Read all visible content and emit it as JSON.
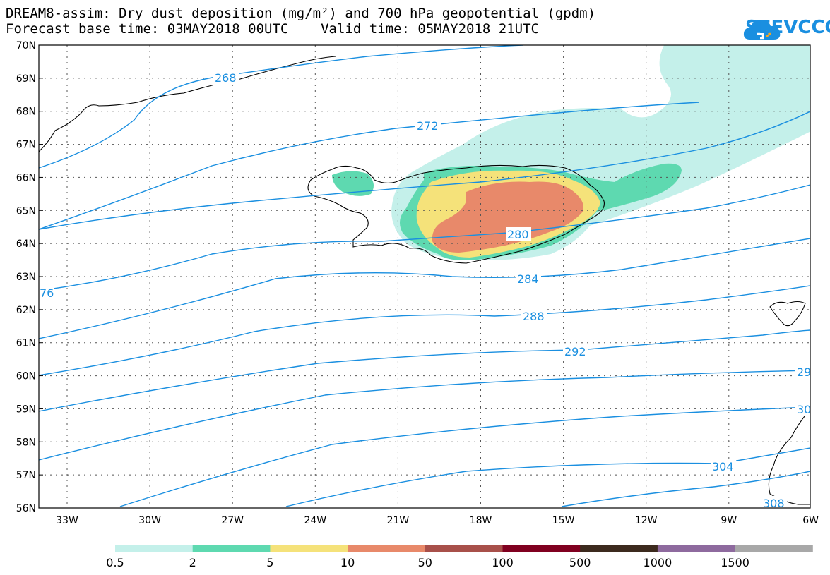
{
  "title_line1": "DREAM8-assim: Dry dust deposition (mg/m²) and 700 hPa geopotential (gpdm)",
  "title_line2": "Forecast base time: 03MAY2018 00UTC    Valid time: 05MAY2018 21UTC",
  "logo_text": "SEEVCCC",
  "map": {
    "lat_labels": [
      "70N",
      "69N",
      "68N",
      "67N",
      "66N",
      "65N",
      "64N",
      "63N",
      "62N",
      "61N",
      "60N",
      "59N",
      "58N",
      "57N",
      "56N"
    ],
    "lon_labels": [
      "33W",
      "30W",
      "27W",
      "24W",
      "21W",
      "18W",
      "15W",
      "12W",
      "9W",
      "6W"
    ],
    "contour_color": "#1a8fe0",
    "contours": [
      {
        "label": "268"
      },
      {
        "label": "272"
      },
      {
        "label": "280"
      },
      {
        "label": "284"
      },
      {
        "label": "288"
      },
      {
        "label": "292"
      },
      {
        "label": "304"
      },
      {
        "label": "308"
      },
      {
        "label": "76"
      },
      {
        "label": "29"
      },
      {
        "label": "30"
      }
    ]
  },
  "legend": {
    "bins": [
      {
        "color": "#c4f0ea"
      },
      {
        "color": "#5ed9b0"
      },
      {
        "color": "#f5e27a"
      },
      {
        "color": "#e8896a"
      },
      {
        "color": "#a8504a"
      },
      {
        "color": "#800020"
      },
      {
        "color": "#3c2a1e"
      },
      {
        "color": "#8e6a9e"
      },
      {
        "color": "#a8a8a8"
      }
    ],
    "labels": [
      "0.5",
      "2",
      "5",
      "10",
      "50",
      "100",
      "500",
      "1000",
      "1500"
    ]
  }
}
